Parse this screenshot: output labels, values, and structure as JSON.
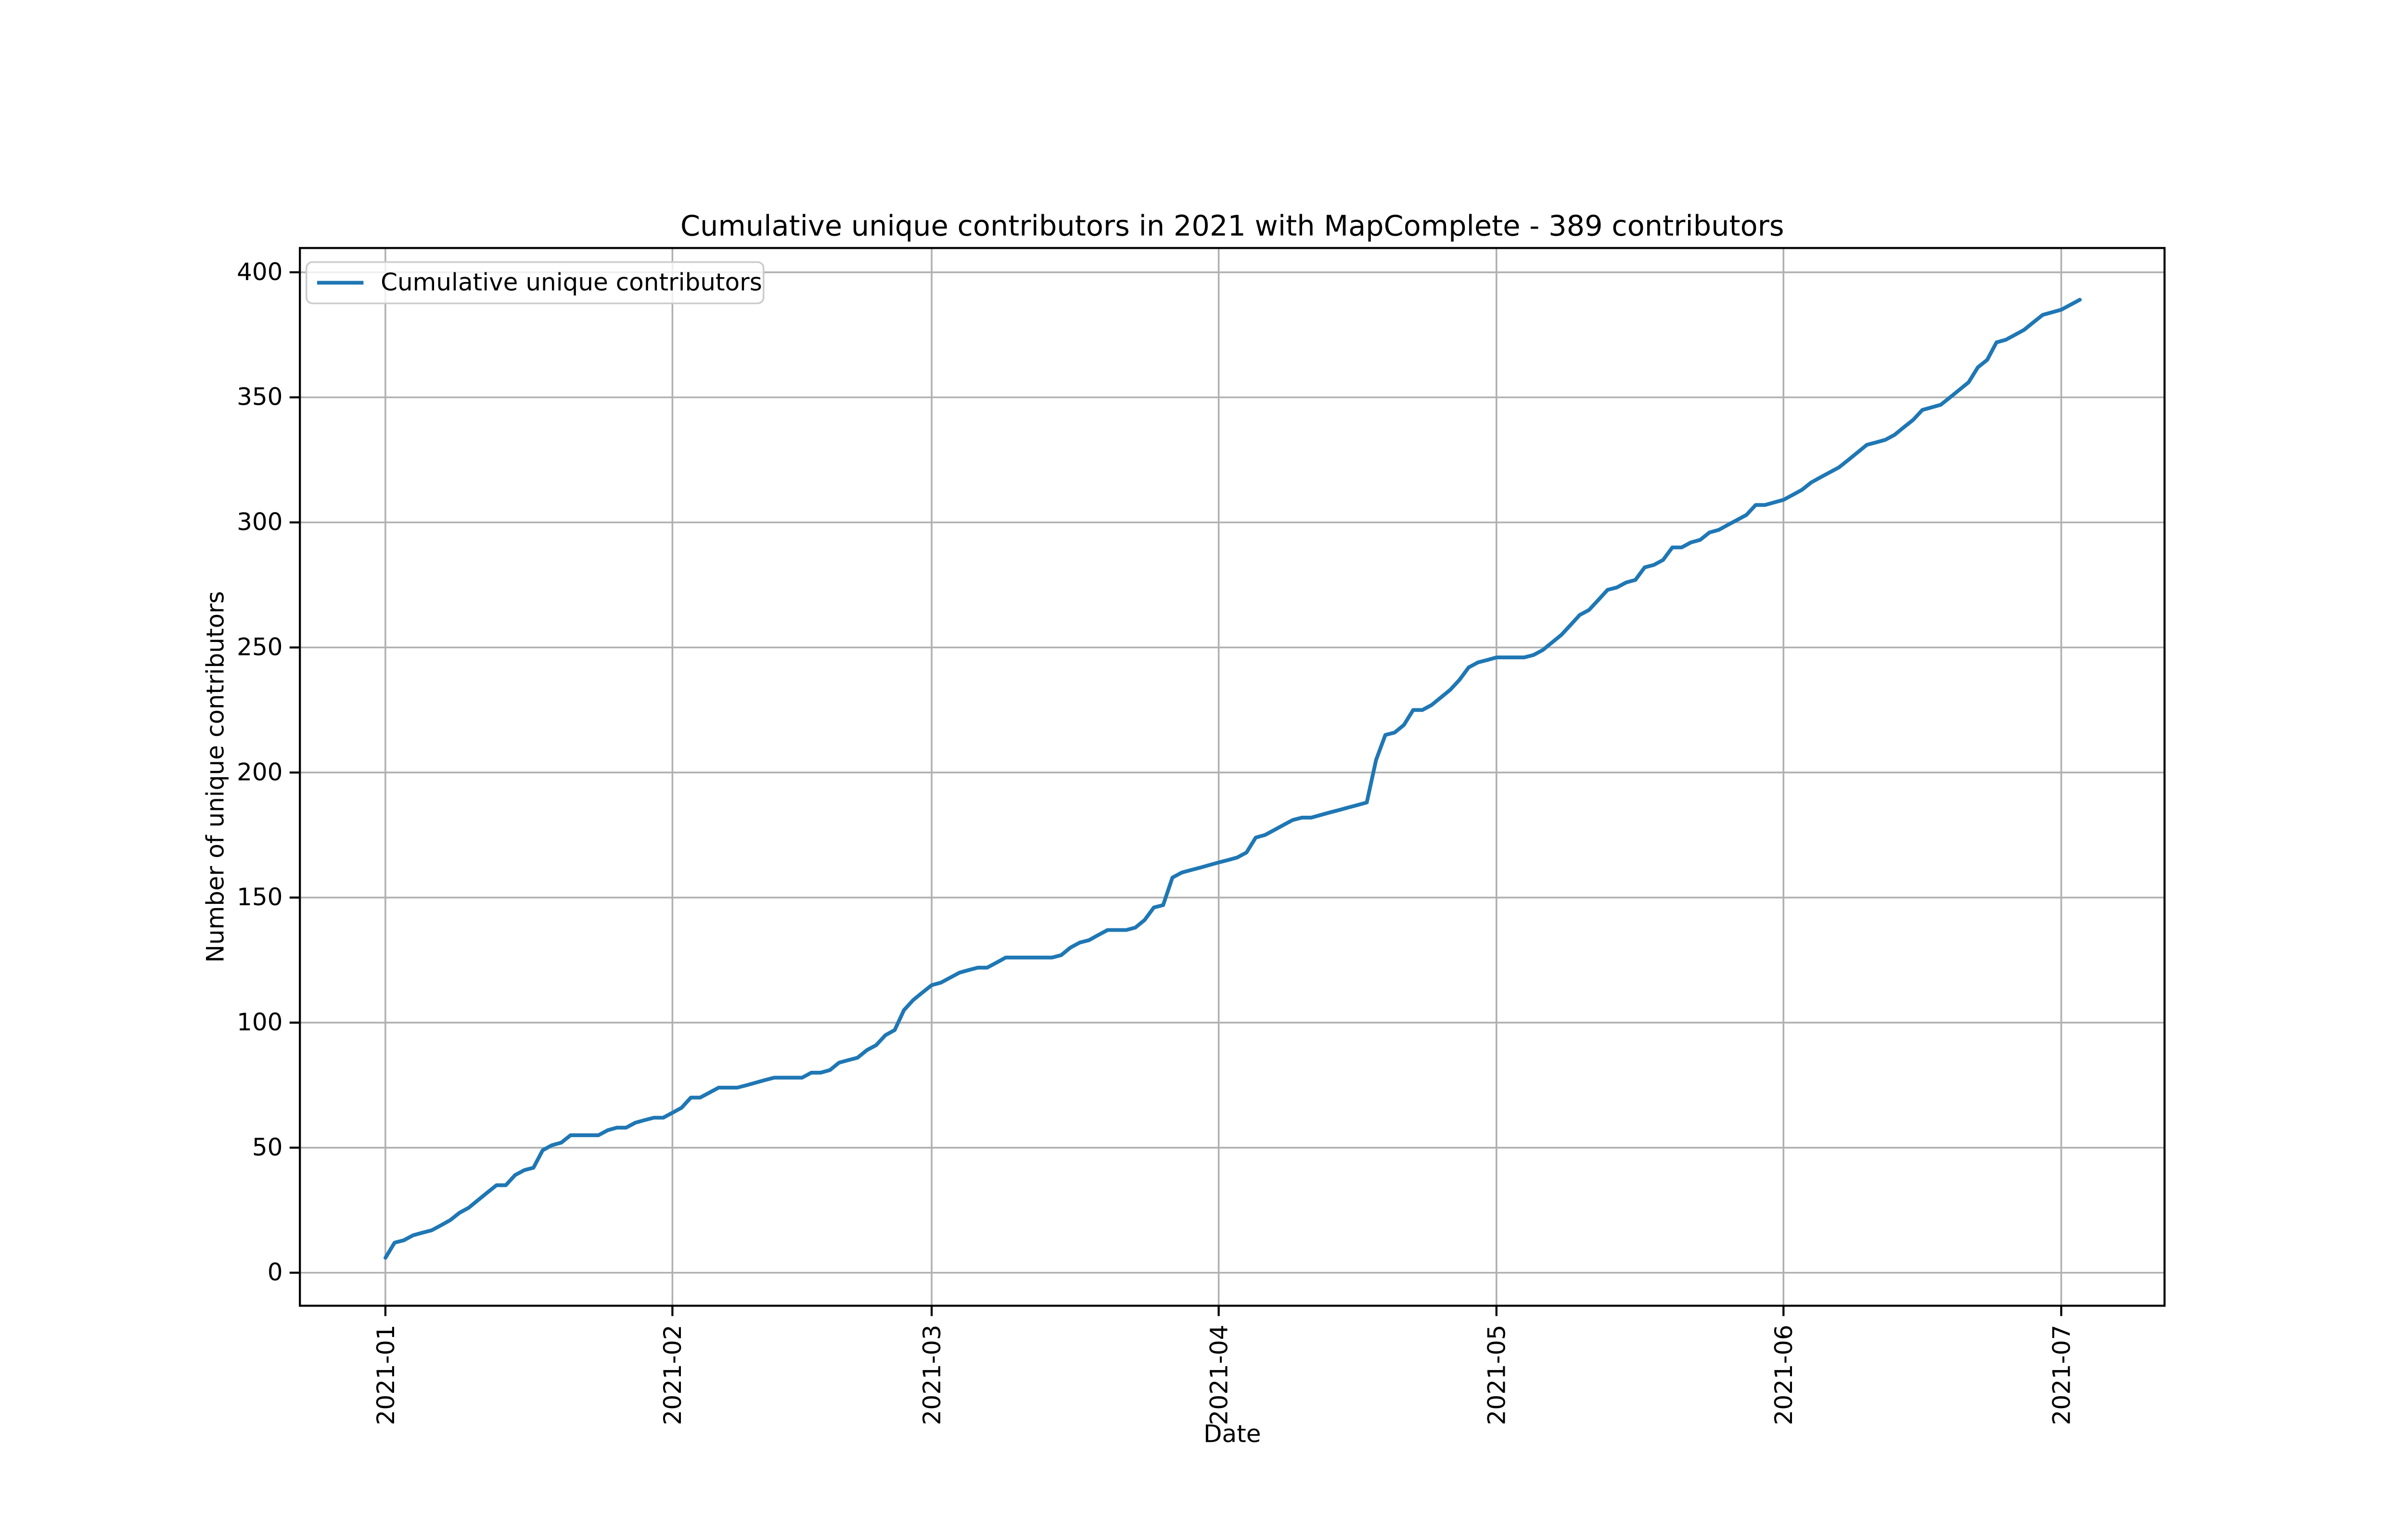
{
  "figure": {
    "title": "Cumulative unique contributors in 2021 with MapComplete - 389 contributors",
    "xlabel": "Date",
    "ylabel": "Number of unique contributors",
    "legend": {
      "label": "Cumulative unique contributors"
    },
    "colors": {
      "line": "#1f77b4",
      "grid": "#b0b0b0",
      "spine": "#000000",
      "legend_border": "#cccccc",
      "background": "#ffffff"
    }
  },
  "chart_data": {
    "type": "line",
    "title": "Cumulative unique contributors in 2021 with MapComplete - 389 contributors",
    "xlabel": "Date",
    "ylabel": "Number of unique contributors",
    "grid": true,
    "legend_position": "upper left",
    "x_tick_labels": [
      "2021-01",
      "2021-02",
      "2021-03",
      "2021-04",
      "2021-05",
      "2021-06",
      "2021-07"
    ],
    "y_tick_labels": [
      0,
      50,
      100,
      150,
      200,
      250,
      300,
      350,
      400
    ],
    "ylim": [
      -13,
      408
    ],
    "series": [
      {
        "name": "Cumulative unique contributors",
        "color": "#1f77b4",
        "x_start_date": "2021-01-01",
        "x_frequency": "daily",
        "x_end_date": "2021-07-03",
        "final_value": 389,
        "values": [
          6,
          12,
          13,
          15,
          16,
          17,
          19,
          21,
          24,
          26,
          29,
          32,
          35,
          35,
          39,
          41,
          42,
          49,
          51,
          52,
          55,
          55,
          55,
          55,
          57,
          58,
          58,
          60,
          61,
          62,
          62,
          64,
          66,
          70,
          70,
          72,
          74,
          74,
          74,
          75,
          76,
          77,
          78,
          78,
          78,
          78,
          80,
          80,
          81,
          84,
          85,
          86,
          89,
          91,
          95,
          97,
          105,
          109,
          112,
          115,
          116,
          118,
          120,
          121,
          122,
          122,
          124,
          126,
          126,
          126,
          126,
          126,
          126,
          127,
          130,
          132,
          133,
          135,
          137,
          137,
          137,
          138,
          141,
          146,
          147,
          158,
          160,
          161,
          162,
          163,
          164,
          165,
          166,
          168,
          174,
          175,
          177,
          179,
          181,
          182,
          182,
          183,
          184,
          185,
          186,
          187,
          188,
          205,
          215,
          216,
          219,
          225,
          225,
          227,
          230,
          233,
          237,
          242,
          244,
          245,
          246,
          246,
          246,
          246,
          247,
          249,
          252,
          255,
          259,
          263,
          265,
          269,
          273,
          274,
          276,
          277,
          282,
          283,
          285,
          290,
          290,
          292,
          293,
          296,
          297,
          299,
          301,
          303,
          307,
          307,
          308,
          309,
          311,
          313,
          316,
          318,
          320,
          322,
          325,
          328,
          331,
          332,
          333,
          335,
          338,
          341,
          345,
          346,
          347,
          350,
          353,
          356,
          362,
          365,
          372,
          373,
          375,
          377,
          380,
          383,
          384,
          385,
          387,
          389
        ]
      }
    ]
  }
}
